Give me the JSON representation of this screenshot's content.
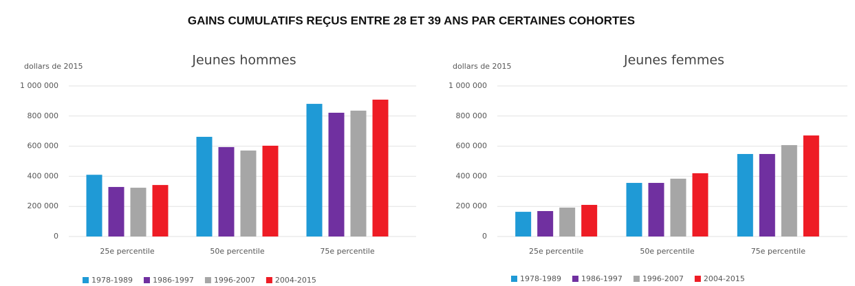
{
  "title": "GAINS CUMULATIFS REÇUS ENTRE 28 ET 39 ANS PAR CERTAINES COHORTES",
  "chart_data": [
    {
      "type": "bar",
      "title": "Jeunes hommes",
      "y_label": "dollars de 2015",
      "categories": [
        "25e percentile",
        "50e percentile",
        "75e percentile"
      ],
      "series": [
        {
          "name": "1978-1989",
          "color": "#1f9ad6",
          "values": [
            410000,
            662000,
            881000
          ]
        },
        {
          "name": "1986-1997",
          "color": "#7030a0",
          "values": [
            329000,
            594000,
            822000
          ]
        },
        {
          "name": "1996-2007",
          "color": "#a6a6a6",
          "values": [
            324000,
            571000,
            836000
          ]
        },
        {
          "name": "2004-2015",
          "color": "#ee1c25",
          "values": [
            342000,
            603000,
            909000
          ]
        }
      ],
      "ylim": [
        0,
        1000000
      ],
      "yticks": [
        0,
        {
          "value": 200000,
          "label": "200 000"
        },
        {
          "value": 400000,
          "label": "400 000"
        },
        {
          "value": 600000,
          "label": "600 000"
        },
        {
          "value": 800000,
          "label": "800 000"
        },
        {
          "value": 1000000,
          "label": "1 000 000"
        }
      ],
      "grid": true,
      "legend": "bottom"
    },
    {
      "type": "bar",
      "title": "Jeunes femmes",
      "y_label": "dollars de 2015",
      "categories": [
        "25e percentile",
        "50e percentile",
        "75e percentile"
      ],
      "series": [
        {
          "name": "1978-1989",
          "color": "#1f9ad6",
          "values": [
            164000,
            356000,
            548000
          ]
        },
        {
          "name": "1986-1997",
          "color": "#7030a0",
          "values": [
            169000,
            356000,
            548000
          ]
        },
        {
          "name": "1996-2007",
          "color": "#a6a6a6",
          "values": [
            192000,
            384000,
            607000
          ]
        },
        {
          "name": "2004-2015",
          "color": "#ee1c25",
          "values": [
            210000,
            420000,
            671000
          ]
        }
      ],
      "ylim": [
        0,
        1000000
      ],
      "yticks": [
        0,
        {
          "value": 200000,
          "label": "200 000"
        },
        {
          "value": 400000,
          "label": "400 000"
        },
        {
          "value": 600000,
          "label": "600 000"
        },
        {
          "value": 800000,
          "label": "800 000"
        },
        {
          "value": 1000000,
          "label": "1 000 000"
        }
      ],
      "grid": true,
      "legend": "bottom"
    }
  ]
}
